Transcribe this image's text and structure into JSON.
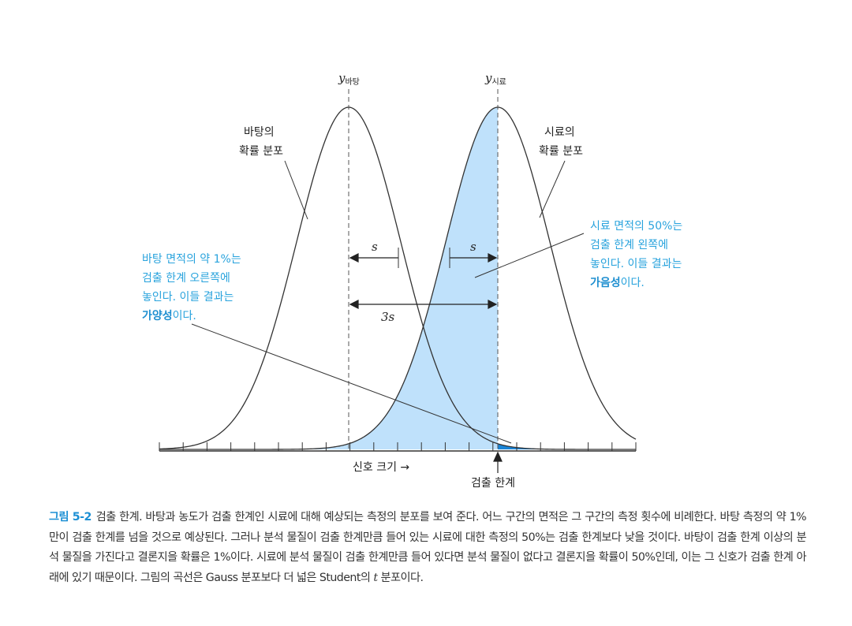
{
  "figure": {
    "y_background": {
      "symbol": "y",
      "subscript": "바탕"
    },
    "y_sample": {
      "symbol": "y",
      "subscript": "시료"
    },
    "background_curve_label": [
      "바탕의",
      "확률 분포"
    ],
    "sample_curve_label": [
      "시료의",
      "확률 분포"
    ],
    "s_label": "s",
    "three_s_label": "3s",
    "signal_axis_label": "신호 크기 →",
    "detection_limit_label": "검출 한계",
    "left_note": {
      "lines": [
        "바탕 면적의 약 1%는",
        "검출 한계 오른쪽에",
        "놓인다. 이들 결과는"
      ],
      "bold": "가양성",
      "suffix": "이다."
    },
    "right_note": {
      "lines": [
        "시료 면적의 50%는",
        "검출 한계 왼쪽에",
        "놓인다. 이들 결과는"
      ],
      "bold": "가음성",
      "suffix": "이다."
    },
    "colors": {
      "fill": "#bfe1fb",
      "fill_dark": "#1a84d6",
      "curve": "#333333",
      "note_text": "#29a3dd"
    }
  },
  "chart_data": {
    "type": "area",
    "x_axis": {
      "label": "신호 크기",
      "ticks_labeled": false
    },
    "curves": [
      {
        "label": "바탕의 확률 분포",
        "center": "y_bg",
        "spread": "s"
      },
      {
        "label": "시료의 확률 분포",
        "center": "y_bg + 3s",
        "spread": "s"
      }
    ],
    "detection_limit": "y_bg + 3s",
    "false_positive_fraction": 0.01,
    "false_negative_fraction": 0.5
  },
  "caption": {
    "label": "그림 5-2",
    "text_before_t": "검출 한계. 바탕과 농도가 검출 한계인 시료에 대해 예상되는 측정의 분포를 보여 준다. 어느 구간의 면적은 그 구간의 측정 횟수에 비례한다. 바탕 측정의 약 1%만이 검출 한계를 넘을 것으로 예상된다. 그러나 분석 물질이 검출 한계만큼 들어 있는 시료에 대한 측정의 50%는 검출 한계보다 낮을 것이다. 바탕이 검출 한계 이상의 분석 물질을 가진다고 결론지을 확률은 1%이다. 시료에 분석 물질이 검출 한계만큼 들어 있다면 분석 물질이 없다고 결론지을 확률이 50%인데, 이는 그 신호가 검출 한계 아래에 있기 때문이다. 그림의 곡선은 Gauss 분포보다 더 넓은 Student의",
    "t_symbol": "t",
    "text_after_t": "분포이다."
  }
}
